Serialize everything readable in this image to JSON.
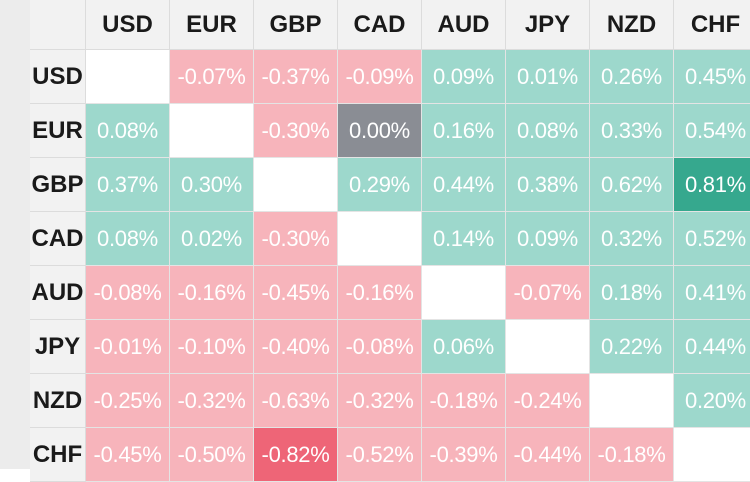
{
  "colors": {
    "positive": "#9dd8cc",
    "positive_strong": "#36a88e",
    "negative": "#f7b4bb",
    "negative_strong": "#ee6577",
    "zero": "#8a8d94",
    "diagonal": "#ffffff"
  },
  "chart_data": {
    "type": "heatmap",
    "title": "",
    "x": [
      "USD",
      "EUR",
      "GBP",
      "CAD",
      "AUD",
      "JPY",
      "NZD",
      "CHF"
    ],
    "y": [
      "USD",
      "EUR",
      "GBP",
      "CAD",
      "AUD",
      "JPY",
      "NZD",
      "CHF"
    ],
    "unit": "%",
    "values": [
      [
        null,
        -0.07,
        -0.37,
        -0.09,
        0.09,
        0.01,
        0.26,
        0.45
      ],
      [
        0.08,
        null,
        -0.3,
        0.0,
        0.16,
        0.08,
        0.33,
        0.54
      ],
      [
        0.37,
        0.3,
        null,
        0.29,
        0.44,
        0.38,
        0.62,
        0.81
      ],
      [
        0.08,
        0.02,
        -0.3,
        null,
        0.14,
        0.09,
        0.32,
        0.52
      ],
      [
        -0.08,
        -0.16,
        -0.45,
        -0.16,
        null,
        -0.07,
        0.18,
        0.41
      ],
      [
        -0.01,
        -0.1,
        -0.4,
        -0.08,
        0.06,
        null,
        0.22,
        0.44
      ],
      [
        -0.25,
        -0.32,
        -0.63,
        -0.32,
        -0.18,
        -0.24,
        null,
        0.2
      ],
      [
        -0.45,
        -0.5,
        -0.82,
        -0.52,
        -0.39,
        -0.44,
        -0.18,
        null
      ]
    ],
    "labels": [
      [
        "",
        "-0.07%",
        "-0.37%",
        "-0.09%",
        "0.09%",
        "0.01%",
        "0.26%",
        "0.45%"
      ],
      [
        "0.08%",
        "",
        "-0.30%",
        "0.00%",
        "0.16%",
        "0.08%",
        "0.33%",
        "0.54%"
      ],
      [
        "0.37%",
        "0.30%",
        "",
        "0.29%",
        "0.44%",
        "0.38%",
        "0.62%",
        "0.81%"
      ],
      [
        "0.08%",
        "0.02%",
        "-0.30%",
        "",
        "0.14%",
        "0.09%",
        "0.32%",
        "0.52%"
      ],
      [
        "-0.08%",
        "-0.16%",
        "-0.45%",
        "-0.16%",
        "",
        "-0.07%",
        "0.18%",
        "0.41%"
      ],
      [
        "-0.01%",
        "-0.10%",
        "-0.40%",
        "-0.08%",
        "0.06%",
        "",
        "0.22%",
        "0.44%"
      ],
      [
        "-0.25%",
        "-0.32%",
        "-0.63%",
        "-0.32%",
        "-0.18%",
        "-0.24%",
        "",
        "0.20%"
      ],
      [
        "-0.45%",
        "-0.50%",
        "-0.82%",
        "-0.52%",
        "-0.39%",
        "-0.44%",
        "-0.18%",
        ""
      ]
    ],
    "strongest_positive": [
      2,
      7
    ],
    "strongest_negative": [
      7,
      2
    ]
  }
}
